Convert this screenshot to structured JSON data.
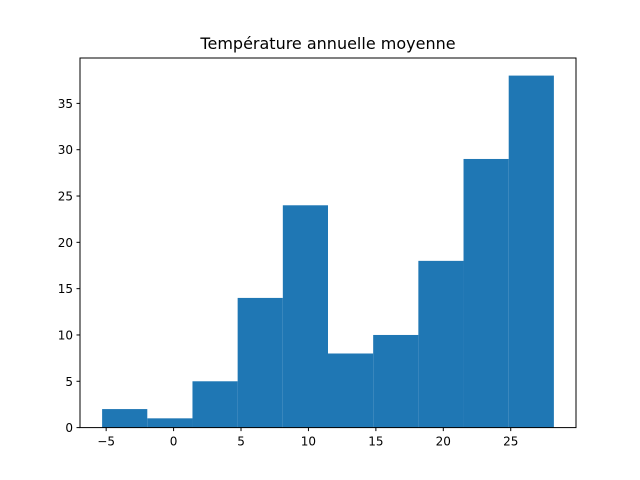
{
  "chart_data": {
    "type": "bar",
    "subtype": "histogram",
    "title": "Température annuelle moyenne",
    "xlabel": "",
    "ylabel": "",
    "bin_edges": [
      -5.3,
      -1.95,
      1.4,
      4.75,
      8.1,
      11.45,
      14.8,
      18.15,
      21.5,
      24.85,
      28.2
    ],
    "values": [
      2,
      1,
      5,
      14,
      24,
      8,
      10,
      18,
      29,
      38
    ],
    "xlim": [
      -6.94,
      29.84
    ],
    "ylim": [
      0,
      39.9
    ],
    "xticks": [
      -5,
      0,
      5,
      10,
      15,
      20,
      25
    ],
    "xtick_labels": [
      "−5",
      "0",
      "5",
      "10",
      "15",
      "20",
      "25"
    ],
    "yticks": [
      0,
      5,
      10,
      15,
      20,
      25,
      30,
      35
    ],
    "ytick_labels": [
      "0",
      "5",
      "10",
      "15",
      "20",
      "25",
      "30",
      "35"
    ],
    "bar_color": "#1f77b4",
    "grid": false,
    "legend": "none"
  }
}
